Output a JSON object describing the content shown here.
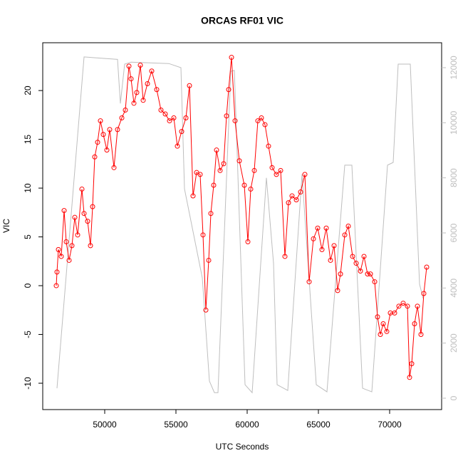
{
  "chart_data": {
    "type": "line",
    "title": "ORCAS RF01 VIC",
    "x_label": "UTC Seconds",
    "y_label": "VIC",
    "xlim": [
      45650,
      73650
    ],
    "xticks": [
      50000,
      55000,
      60000,
      65000,
      70000
    ],
    "ylim": [
      -12.7,
      24.9
    ],
    "yticks": [
      -10,
      -5,
      0,
      5,
      10,
      15,
      20
    ],
    "y2lim": [
      -414,
      12905
    ],
    "y2ticks": [
      0,
      2000,
      4000,
      6000,
      8000,
      10000,
      12000
    ],
    "series": [
      {
        "color": "red",
        "markers": true,
        "x": [
          46600,
          46650,
          46750,
          46950,
          47150,
          47300,
          47500,
          47700,
          47900,
          48100,
          48400,
          48550,
          48800,
          49000,
          49150,
          49300,
          49500,
          49700,
          49900,
          50150,
          50350,
          50650,
          50900,
          51200,
          51450,
          51700,
          51850,
          52050,
          52250,
          52500,
          52700,
          53000,
          53300,
          53650,
          53950,
          54250,
          54550,
          54850,
          55100,
          55400,
          55700,
          55950,
          56200,
          56450,
          56700,
          56900,
          57100,
          57300,
          57450,
          57650,
          57850,
          58100,
          58350,
          58550,
          58700,
          58900,
          59150,
          59450,
          59800,
          60050,
          60250,
          60500,
          60750,
          61000,
          61250,
          61500,
          61750,
          62050,
          62350,
          62650,
          62900,
          63150,
          63450,
          63750,
          64050,
          64350,
          64650,
          64950,
          65250,
          65550,
          65850,
          66100,
          66350,
          66550,
          66850,
          67100,
          67400,
          67650,
          67950,
          68200,
          68450,
          68650,
          68950,
          69150,
          69350,
          69550,
          69800,
          70050,
          70350,
          70650,
          70950,
          71250,
          71400,
          71550,
          71750,
          71950,
          72200,
          72400,
          72600
        ],
        "values": [
          0,
          1.4,
          3.7,
          3,
          7.7,
          4.5,
          2.6,
          4.1,
          7,
          5.2,
          9.9,
          7.4,
          6.6,
          4.1,
          8.1,
          13.2,
          14.7,
          16.9,
          15.5,
          13.9,
          16,
          12.1,
          16,
          17.2,
          18,
          22.5,
          21.2,
          18.7,
          19.8,
          22.6,
          19,
          20.7,
          22,
          20.1,
          18,
          17.6,
          16.9,
          17.2,
          14.3,
          15.8,
          17.2,
          20.5,
          9.2,
          11.6,
          11.4,
          5.2,
          -2.5,
          2.6,
          7.4,
          10.3,
          13.9,
          11.8,
          12.5,
          17.4,
          20.1,
          23.4,
          16.9,
          12.8,
          10.3,
          4.5,
          9.9,
          11.8,
          16.9,
          17.2,
          16.5,
          14.3,
          12.1,
          11.4,
          11.8,
          3,
          8.5,
          9.2,
          8.8,
          9.6,
          11.4,
          0.4,
          4.8,
          5.9,
          3.7,
          5.9,
          2.6,
          4.1,
          -0.5,
          1.2,
          5.2,
          6.1,
          3,
          2.3,
          1.5,
          3,
          1.2,
          1.2,
          0.4,
          -3.2,
          -5,
          -3.9,
          -4.7,
          -2.8,
          -2.8,
          -2.1,
          -1.8,
          -2.1,
          -9.4,
          -8,
          -3.9,
          -2.1,
          -5,
          -0.8,
          1.9
        ]
      },
      {
        "color": "#bebebe",
        "axis": "y2",
        "markers": false,
        "x": [
          46650,
          48550,
          50900,
          51100,
          51400,
          51850,
          54500,
          55350,
          55600,
          56850,
          57350,
          57700,
          57950,
          58850,
          59100,
          59850,
          60350,
          61350,
          61850,
          62100,
          62850,
          63850,
          64850,
          65600,
          66850,
          67350,
          68100,
          68750,
          69850,
          70250,
          70600,
          71450,
          72100,
          72350
        ],
        "values": [
          360,
          12390,
          12300,
          10700,
          12130,
          12200,
          12150,
          12000,
          7600,
          4370,
          620,
          200,
          200,
          11870,
          11900,
          490,
          200,
          8000,
          4900,
          490,
          280,
          8130,
          490,
          230,
          8460,
          8460,
          360,
          230,
          8460,
          8560,
          12130,
          12130,
          4140,
          3620
        ]
      }
    ]
  }
}
